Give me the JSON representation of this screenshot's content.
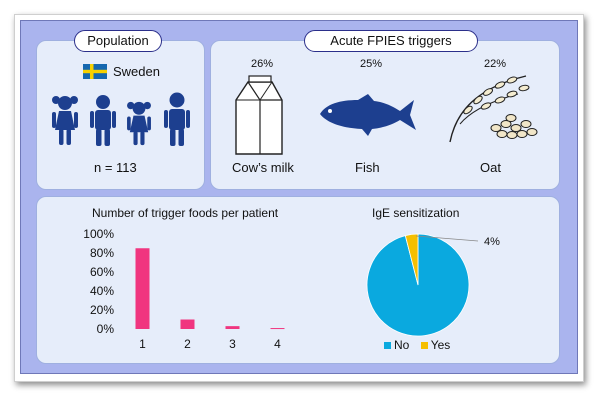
{
  "population": {
    "title": "Population",
    "country": "Sweden",
    "n_label": "n = 113"
  },
  "triggers": {
    "title": "Acute FPIES triggers",
    "items": [
      {
        "label": "Cow’s milk",
        "percent": "26%",
        "icon": "milk-carton-icon"
      },
      {
        "label": "Fish",
        "percent": "25%",
        "icon": "fish-icon"
      },
      {
        "label": "Oat",
        "percent": "22%",
        "icon": "oat-icon"
      }
    ]
  },
  "colors": {
    "background": "#aab4ee",
    "panel": "#e6edfa",
    "people": "#1d3f8f",
    "bar": "#f0357f",
    "pie_no": "#0aa9df",
    "pie_yes": "#f5bf00"
  },
  "chart_data": [
    {
      "type": "bar",
      "title": "Number of trigger foods per patient",
      "categories": [
        "1",
        "2",
        "3",
        "4"
      ],
      "values": [
        85,
        10,
        3,
        1
      ],
      "ylim": [
        0,
        100
      ],
      "yticks": [
        "0%",
        "20%",
        "40%",
        "60%",
        "80%",
        "100%"
      ],
      "grid": false
    },
    {
      "type": "pie",
      "title": "IgE sensitization",
      "labels": [
        "No",
        "Yes"
      ],
      "values": [
        96,
        4
      ],
      "annotation": "4%",
      "legend_position": "bottom"
    }
  ]
}
